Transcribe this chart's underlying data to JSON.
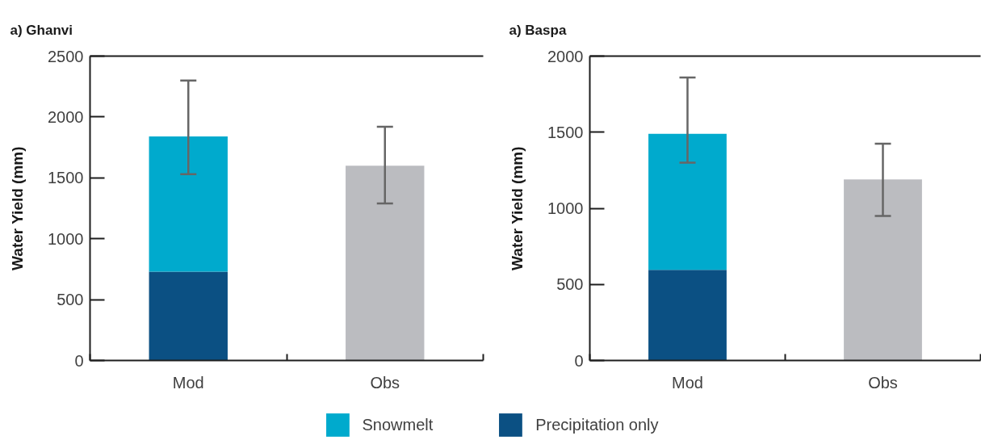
{
  "chart_data": [
    {
      "type": "bar",
      "title": "a) Ghanvi",
      "ylabel": "Water Yield (mm)",
      "categories": [
        "Mod",
        "Obs"
      ],
      "stacked": true,
      "grid": false,
      "legend": "bottom",
      "ylim": [
        0,
        2500
      ],
      "yticks": [
        0,
        500,
        1000,
        1500,
        2000,
        2500
      ],
      "series": [
        {
          "name": "Precipitation only",
          "color": "#0b5083",
          "values": [
            730,
            null
          ]
        },
        {
          "name": "Snowmelt",
          "color": "#00aacd",
          "values": [
            1110,
            null
          ],
          "errors": [
            [
              1530,
              2300
            ],
            null
          ]
        },
        {
          "color": "#bbbcc0",
          "values": [
            null,
            1600
          ],
          "errors": [
            null,
            [
              1290,
              1920
            ]
          ]
        }
      ]
    },
    {
      "type": "bar",
      "title": "a) Baspa",
      "ylabel": "Water Yield (mm)",
      "categories": [
        "Mod",
        "Obs"
      ],
      "stacked": true,
      "grid": false,
      "ylim": [
        0,
        2000
      ],
      "yticks": [
        0,
        500,
        1000,
        1500,
        2000
      ],
      "series": [
        {
          "color": "#0b5083",
          "values": [
            595,
            null
          ]
        },
        {
          "color": "#00aacd",
          "values": [
            895,
            null
          ],
          "errors": [
            [
              1300,
              1860
            ],
            null
          ]
        },
        {
          "color": "#bbbcc0",
          "values": [
            null,
            1190
          ],
          "errors": [
            null,
            [
              950,
              1425
            ]
          ]
        }
      ]
    }
  ]
}
